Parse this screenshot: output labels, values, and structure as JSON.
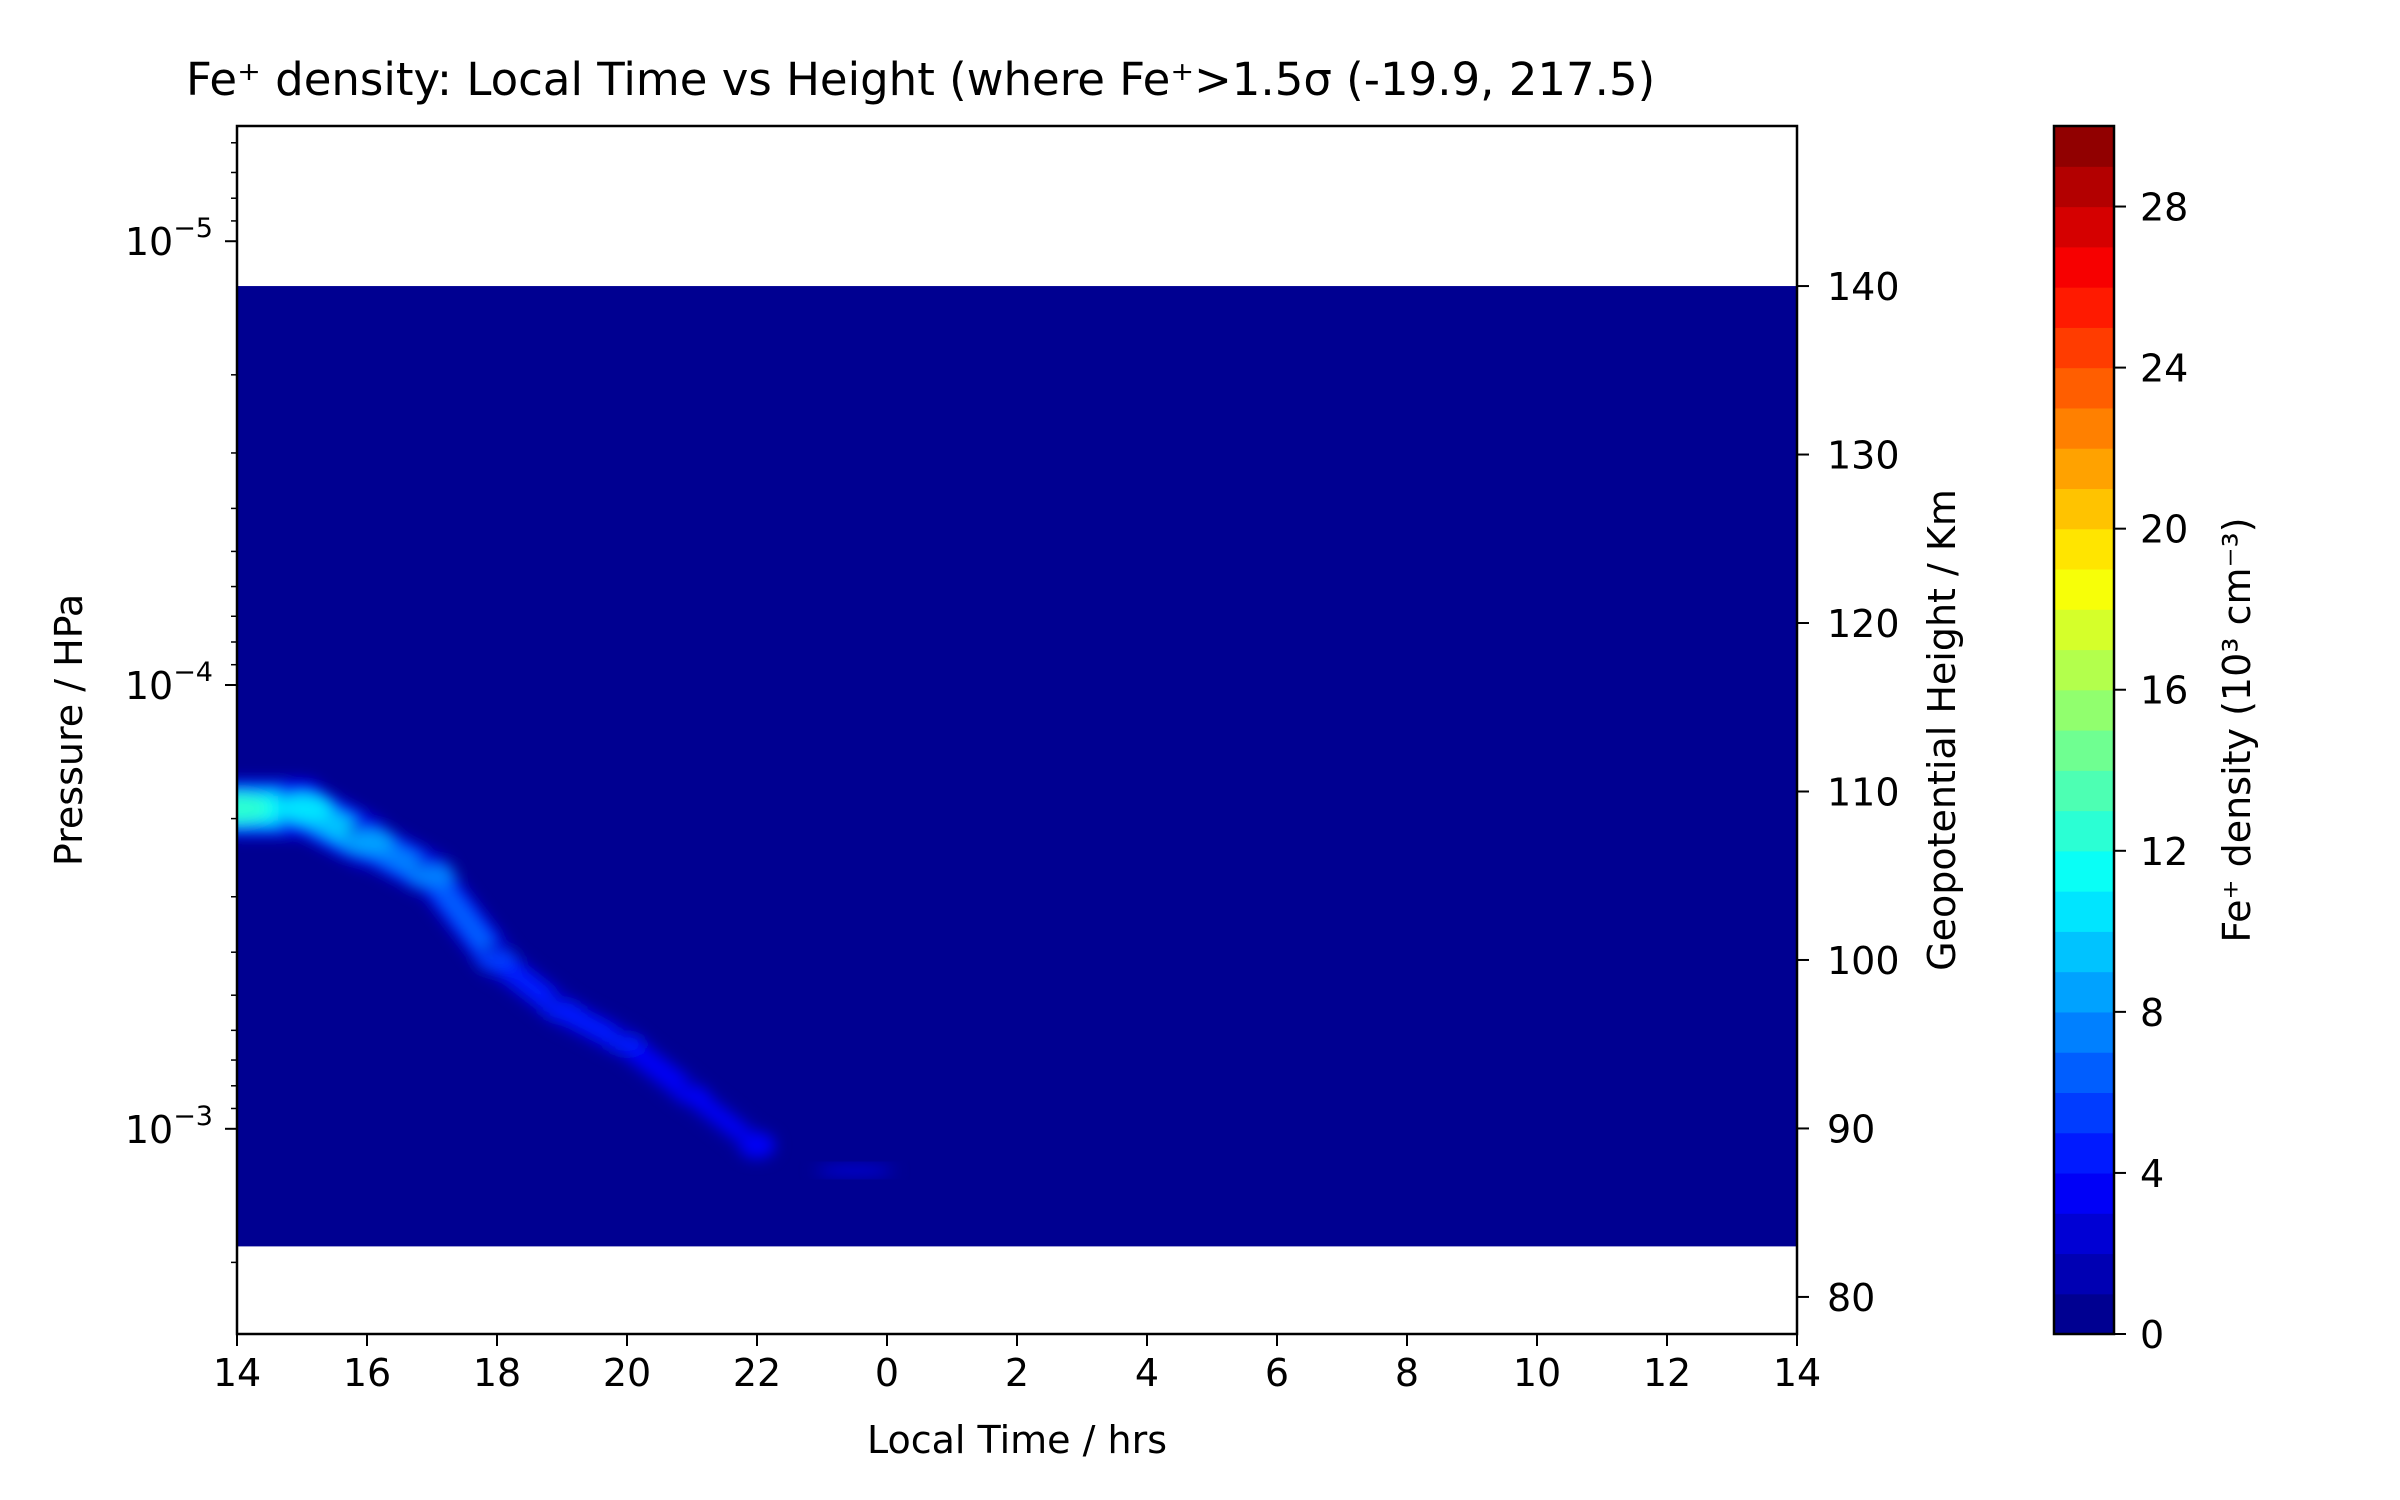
{
  "chart_data": {
    "type": "heatmap",
    "title": "Fe⁺ density: Local Time vs Height (where Fe⁺>1.5σ (-19.9, 217.5)",
    "xlabel": "Local Time / hrs",
    "ylabel_left": "Pressure / HPa",
    "ylabel_right": "Geopotential Height / Km",
    "colorbar_label": "Fe⁺ density (10³ cm⁻³)",
    "x_tick_labels": [
      "14",
      "16",
      "18",
      "20",
      "22",
      "0",
      "2",
      "4",
      "6",
      "8",
      "10",
      "12",
      "14"
    ],
    "x_range_hours_elapsed": [
      0,
      24
    ],
    "y_left_scale": "log",
    "y_left_range": [
      0.0029,
      5.5e-06
    ],
    "y_left_ticks": [
      {
        "base": "10",
        "exponent": "−5",
        "value": 1e-05
      },
      {
        "base": "10",
        "exponent": "−4",
        "value": 0.0001
      },
      {
        "base": "10",
        "exponent": "−3",
        "value": 0.001
      }
    ],
    "y_right_range": [
      77.8,
      149.5
    ],
    "y_right_ticks": [
      "80",
      "90",
      "100",
      "110",
      "120",
      "130",
      "140"
    ],
    "data_extent_height_km": [
      83,
      140
    ],
    "colorbar_range": [
      0,
      30
    ],
    "colorbar_levels": 30,
    "colorbar_ticks": [
      "0",
      "4",
      "8",
      "12",
      "16",
      "20",
      "24",
      "28"
    ],
    "colormap": "jet",
    "background_value": 0,
    "features": [
      {
        "name": "main Fe+ layer",
        "points": [
          {
            "local_time": 14,
            "height_km": 109,
            "value": 12
          },
          {
            "local_time": 15,
            "height_km": 109,
            "value": 10.5
          },
          {
            "local_time": 16,
            "height_km": 107,
            "value": 8.5
          },
          {
            "local_time": 17,
            "height_km": 105,
            "value": 7
          },
          {
            "local_time": 18,
            "height_km": 100,
            "value": 5
          },
          {
            "local_time": 19,
            "height_km": 97,
            "value": 4.5
          },
          {
            "local_time": 20,
            "height_km": 95,
            "value": 4
          },
          {
            "local_time": 21,
            "height_km": 92,
            "value": 3.5
          },
          {
            "local_time": 22,
            "height_km": 89,
            "value": 3
          }
        ]
      },
      {
        "name": "faint patch",
        "points": [
          {
            "local_time": 23.5,
            "height_km": 87.5,
            "value": 2.5
          }
        ]
      }
    ]
  }
}
